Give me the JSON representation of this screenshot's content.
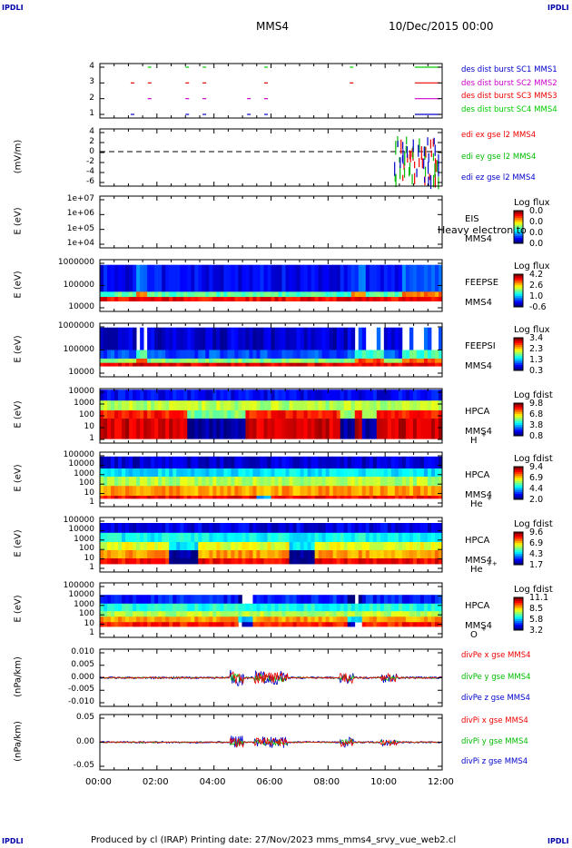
{
  "corners": {
    "tl": "IPDLI",
    "tr": "IPDLI",
    "bl": "IPDLI",
    "br": "IPDLI"
  },
  "header": {
    "mission": "MMS4",
    "datetime": "10/Dec/2015 00:00"
  },
  "footer": "Produced by cl (IRAP)   Printing date: 27/Nov/2023   mms_mms4_srvy_vue_web2.cl",
  "chart_data": [
    {
      "type": "scatter",
      "name": "burst",
      "yticks": [
        "4",
        "3",
        "2",
        "1"
      ],
      "legend": [
        {
          "text": "des dist burst SC1 MMS1",
          "color": "#0000cc"
        },
        {
          "text": "des dist burst SC2 MMS2",
          "color": "#cc00cc"
        },
        {
          "text": "des dist burst SC3 MMS3",
          "color": "#ee0000"
        },
        {
          "text": "des dist burst SC4 MMS4",
          "color": "#00cc00"
        }
      ]
    },
    {
      "type": "line",
      "ylabel": "(mV/m)",
      "yticks": [
        "4",
        "2",
        "0",
        "-2",
        "-4",
        "-6"
      ],
      "legend": [
        {
          "text": "edi ex gse l2 MMS4",
          "color": "#ee0000"
        },
        {
          "text": "edi ey gse l2 MMS4",
          "color": "#00bb00"
        },
        {
          "text": "edi ez gse l2 MMS4",
          "color": "#0000cc"
        }
      ]
    },
    {
      "type": "heatmap",
      "ylabel": "E (eV)",
      "yticks": [
        "1e+07",
        "1e+06",
        "1e+05",
        "1e+04"
      ],
      "side": [
        "EIS",
        "MMS4"
      ],
      "overlay": "Heavy electron to",
      "cbtitle": "Log flux",
      "cbvals": [
        "0.0",
        "0.0",
        "0.0",
        "0.0"
      ]
    },
    {
      "type": "heatmap",
      "ylabel": "E (eV)",
      "yticks": [
        "1000000",
        "100000",
        "10000"
      ],
      "side": [
        "FEEPSE",
        "MMS4"
      ],
      "cbtitle": "Log flux",
      "cbvals": [
        "4.2",
        "2.6",
        "1.0",
        "-0.6"
      ]
    },
    {
      "type": "heatmap",
      "ylabel": "E (eV)",
      "yticks": [
        "1000000",
        "100000",
        "10000"
      ],
      "side": [
        "FEEPSI",
        "MMS4"
      ],
      "cbtitle": "Log flux",
      "cbvals": [
        "3.4",
        "2.3",
        "1.3",
        "0.3"
      ]
    },
    {
      "type": "heatmap",
      "ylabel": "E (eV)",
      "yticks": [
        "10000",
        "1000",
        "100",
        "10",
        "1"
      ],
      "side": [
        "HPCA",
        "MMS4"
      ],
      "species": "H",
      "sup": "+",
      "cbtitle": "Log fdist",
      "cbvals": [
        "9.8",
        "6.8",
        "3.8",
        "0.8"
      ]
    },
    {
      "type": "heatmap",
      "ylabel": "E (eV)",
      "yticks": [
        "100000",
        "10000",
        "1000",
        "100",
        "10",
        "1"
      ],
      "side": [
        "HPCA",
        "MMS4"
      ],
      "species": "He",
      "sup": "+",
      "cbtitle": "Log fdist",
      "cbvals": [
        "9.4",
        "6.9",
        "4.4",
        "2.0"
      ]
    },
    {
      "type": "heatmap",
      "ylabel": "E (eV)",
      "yticks": [
        "100000",
        "10000",
        "1000",
        "100",
        "10",
        "1"
      ],
      "side": [
        "HPCA",
        "MMS4"
      ],
      "species": "He",
      "sup": "++",
      "cbtitle": "Log fdist",
      "cbvals": [
        "9.6",
        "6.9",
        "4.3",
        "1.7"
      ]
    },
    {
      "type": "heatmap",
      "ylabel": "E (eV)",
      "yticks": [
        "100000",
        "10000",
        "1000",
        "100",
        "10",
        "1"
      ],
      "side": [
        "HPCA",
        "MMS4"
      ],
      "species": "O",
      "sup": "+",
      "cbtitle": "Log fdist",
      "cbvals": [
        "11.1",
        "8.5",
        "5.8",
        "3.2"
      ]
    },
    {
      "type": "line",
      "ylabel": "(nPa/km)",
      "yticks": [
        "0.010",
        "0.005",
        "0.000",
        "-0.005",
        "-0.010"
      ],
      "legend": [
        {
          "text": "divPe x gse MMS4",
          "color": "#ee0000"
        },
        {
          "text": "divPe y gse MMS4",
          "color": "#00bb00"
        },
        {
          "text": "divPe z gse MMS4",
          "color": "#0000cc"
        }
      ]
    },
    {
      "type": "line",
      "ylabel": "(nPa/km)",
      "yticks": [
        "0.05",
        "0.00",
        "-0.05"
      ],
      "legend": [
        {
          "text": "divPi x gse MMS4",
          "color": "#ee0000"
        },
        {
          "text": "divPi y gse MMS4",
          "color": "#00bb00"
        },
        {
          "text": "divPi z gse MMS4",
          "color": "#0000cc"
        }
      ]
    }
  ],
  "xaxis": {
    "ticks": [
      "00:00",
      "02:00",
      "04:00",
      "06:00",
      "08:00",
      "10:00",
      "12:00"
    ]
  }
}
